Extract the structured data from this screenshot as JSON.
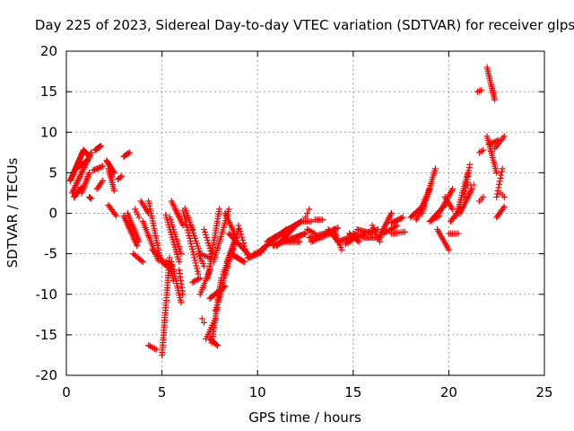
{
  "chart_data": {
    "type": "scatter",
    "title": "Day 225 of 2023, Sidereal Day-to-day VTEC variation (SDTVAR) for receiver glps",
    "xlabel": "GPS time / hours",
    "ylabel": "SDTVAR / TECUs",
    "xlim": [
      0,
      25
    ],
    "ylim": [
      -20,
      20
    ],
    "xticks": [
      0,
      5,
      10,
      15,
      20,
      25
    ],
    "yticks": [
      -20,
      -15,
      -10,
      -5,
      0,
      5,
      10,
      15,
      20
    ],
    "x_tick_labels": [
      "0",
      "5",
      "10",
      "15",
      "20",
      "25"
    ],
    "y_tick_labels": [
      "-20",
      "-15",
      "-10",
      "-5",
      "0",
      "5",
      "10",
      "15",
      "20"
    ],
    "grid": true,
    "marker": "+",
    "color": "#ff0000",
    "segments": [
      {
        "x0": 0.2,
        "y0": 4.0,
        "x1": 0.9,
        "y1": 7.8,
        "n": 30
      },
      {
        "x0": 0.9,
        "y0": 7.8,
        "x1": 1.2,
        "y1": 7.0,
        "n": 10
      },
      {
        "x0": 0.3,
        "y0": 2.5,
        "x1": 1.3,
        "y1": 7.5,
        "n": 28
      },
      {
        "x0": 0.4,
        "y0": 2.0,
        "x1": 0.8,
        "y1": 3.2,
        "n": 10
      },
      {
        "x0": 0.5,
        "y0": 5.5,
        "x1": 1.1,
        "y1": 6.5,
        "n": 12
      },
      {
        "x0": 0.8,
        "y0": 2.5,
        "x1": 1.2,
        "y1": 5.0,
        "n": 12
      },
      {
        "x0": 1.2,
        "y0": 2.0,
        "x1": 1.3,
        "y1": 1.8,
        "n": 3
      },
      {
        "x0": 1.5,
        "y0": 7.8,
        "x1": 1.8,
        "y1": 8.3,
        "n": 8
      },
      {
        "x0": 1.4,
        "y0": 5.3,
        "x1": 1.9,
        "y1": 5.8,
        "n": 8
      },
      {
        "x0": 1.6,
        "y0": 3.0,
        "x1": 1.9,
        "y1": 4.0,
        "n": 6
      },
      {
        "x0": 2.1,
        "y0": 6.5,
        "x1": 2.5,
        "y1": 5.0,
        "n": 12
      },
      {
        "x0": 2.2,
        "y0": 5.5,
        "x1": 2.5,
        "y1": 2.8,
        "n": 12
      },
      {
        "x0": 2.3,
        "y0": 5.0,
        "x1": 2.4,
        "y1": 4.5,
        "n": 3
      },
      {
        "x0": 2.2,
        "y0": 1.0,
        "x1": 2.6,
        "y1": -0.3,
        "n": 8
      },
      {
        "x0": 2.7,
        "y0": 4.2,
        "x1": 2.9,
        "y1": 4.6,
        "n": 4
      },
      {
        "x0": 3.0,
        "y0": 7.0,
        "x1": 3.3,
        "y1": 7.5,
        "n": 6
      },
      {
        "x0": 3.0,
        "y0": -0.3,
        "x1": 3.7,
        "y1": -4.0,
        "n": 20
      },
      {
        "x0": 3.2,
        "y0": 0.0,
        "x1": 3.8,
        "y1": -3.5,
        "n": 16
      },
      {
        "x0": 3.5,
        "y0": -5.0,
        "x1": 4.0,
        "y1": -6.0,
        "n": 8
      },
      {
        "x0": 3.9,
        "y0": 1.5,
        "x1": 4.3,
        "y1": 0.0,
        "n": 8
      },
      {
        "x0": 3.6,
        "y0": 0.5,
        "x1": 3.8,
        "y1": -0.5,
        "n": 4
      },
      {
        "x0": 4.0,
        "y0": -1.0,
        "x1": 4.8,
        "y1": -5.8,
        "n": 20
      },
      {
        "x0": 4.3,
        "y0": 1.5,
        "x1": 4.9,
        "y1": -5.5,
        "n": 24
      },
      {
        "x0": 4.5,
        "y0": -4.5,
        "x1": 5.0,
        "y1": -5.8,
        "n": 10
      },
      {
        "x0": 4.3,
        "y0": -16.3,
        "x1": 4.7,
        "y1": -16.8,
        "n": 6
      },
      {
        "x0": 5.0,
        "y0": -6.0,
        "x1": 5.5,
        "y1": -7.0,
        "n": 10
      },
      {
        "x0": 5.2,
        "y0": -6.0,
        "x1": 5.5,
        "y1": -6.5,
        "n": 6
      },
      {
        "x0": 5.0,
        "y0": -17.5,
        "x1": 5.4,
        "y1": -5.5,
        "n": 40
      },
      {
        "x0": 5.4,
        "y0": -6.3,
        "x1": 5.6,
        "y1": -8.3,
        "n": 8
      },
      {
        "x0": 5.2,
        "y0": -0.2,
        "x1": 5.9,
        "y1": -6.0,
        "n": 20
      },
      {
        "x0": 5.4,
        "y0": -0.5,
        "x1": 6.0,
        "y1": -5.0,
        "n": 16
      },
      {
        "x0": 5.5,
        "y0": -6.0,
        "x1": 6.0,
        "y1": -11.0,
        "n": 18
      },
      {
        "x0": 5.5,
        "y0": 1.5,
        "x1": 6.1,
        "y1": -1.5,
        "n": 14
      },
      {
        "x0": 5.9,
        "y0": -7.0,
        "x1": 6.1,
        "y1": -10.0,
        "n": 8
      },
      {
        "x0": 6.1,
        "y0": 0.3,
        "x1": 6.9,
        "y1": -7.5,
        "n": 24
      },
      {
        "x0": 6.2,
        "y0": 0.6,
        "x1": 6.6,
        "y1": -2.0,
        "n": 10
      },
      {
        "x0": 6.5,
        "y0": -1.5,
        "x1": 7.0,
        "y1": -5.0,
        "n": 12
      },
      {
        "x0": 6.6,
        "y0": -8.5,
        "x1": 7.0,
        "y1": -8.0,
        "n": 6
      },
      {
        "x0": 6.9,
        "y0": -5.0,
        "x1": 7.2,
        "y1": -6.5,
        "n": 6
      },
      {
        "x0": 7.0,
        "y0": -5.0,
        "x1": 7.5,
        "y1": -5.5,
        "n": 6
      },
      {
        "x0": 7.0,
        "y0": -10.0,
        "x1": 7.5,
        "y1": -7.0,
        "n": 12
      },
      {
        "x0": 7.1,
        "y0": -13.0,
        "x1": 7.2,
        "y1": -13.5,
        "n": 2
      },
      {
        "x0": 7.5,
        "y0": -15.5,
        "x1": 7.9,
        "y1": -16.3,
        "n": 8
      },
      {
        "x0": 7.3,
        "y0": -15.5,
        "x1": 7.8,
        "y1": -13.0,
        "n": 10
      },
      {
        "x0": 7.6,
        "y0": -16.0,
        "x1": 8.1,
        "y1": -8.0,
        "n": 30
      },
      {
        "x0": 7.8,
        "y0": -12.0,
        "x1": 8.2,
        "y1": -9.0,
        "n": 10
      },
      {
        "x0": 7.5,
        "y0": -10.5,
        "x1": 8.3,
        "y1": -9.0,
        "n": 14
      },
      {
        "x0": 7.2,
        "y0": -2.0,
        "x1": 7.6,
        "y1": -5.0,
        "n": 10
      },
      {
        "x0": 7.4,
        "y0": -8.0,
        "x1": 8.0,
        "y1": 0.5,
        "n": 30
      },
      {
        "x0": 7.7,
        "y0": -6.0,
        "x1": 8.5,
        "y1": 0.5,
        "n": 24
      },
      {
        "x0": 8.0,
        "y0": -10.0,
        "x1": 8.7,
        "y1": -4.5,
        "n": 20
      },
      {
        "x0": 8.2,
        "y0": -7.5,
        "x1": 8.9,
        "y1": -3.0,
        "n": 18
      },
      {
        "x0": 8.3,
        "y0": 0.0,
        "x1": 8.8,
        "y1": -2.5,
        "n": 12
      },
      {
        "x0": 8.4,
        "y0": -6.0,
        "x1": 9.0,
        "y1": -2.0,
        "n": 16
      },
      {
        "x0": 8.6,
        "y0": -5.0,
        "x1": 9.3,
        "y1": -6.0,
        "n": 14
      },
      {
        "x0": 8.5,
        "y0": -2.5,
        "x1": 9.5,
        "y1": -5.0,
        "n": 18
      },
      {
        "x0": 9.0,
        "y0": -1.5,
        "x1": 9.5,
        "y1": -5.5,
        "n": 12
      },
      {
        "x0": 9.5,
        "y0": -5.5,
        "x1": 10.2,
        "y1": -4.8,
        "n": 12
      },
      {
        "x0": 9.8,
        "y0": -5.0,
        "x1": 10.3,
        "y1": -4.5,
        "n": 6
      },
      {
        "x0": 10.2,
        "y0": -4.5,
        "x1": 11.5,
        "y1": -2.0,
        "n": 30
      },
      {
        "x0": 10.5,
        "y0": -3.5,
        "x1": 12.3,
        "y1": -1.0,
        "n": 36
      },
      {
        "x0": 10.8,
        "y0": -4.0,
        "x1": 12.5,
        "y1": -2.5,
        "n": 30
      },
      {
        "x0": 11.0,
        "y0": -4.0,
        "x1": 12.0,
        "y1": -1.5,
        "n": 20
      },
      {
        "x0": 11.2,
        "y0": -3.5,
        "x1": 12.2,
        "y1": -3.5,
        "n": 14
      },
      {
        "x0": 12.3,
        "y0": -1.0,
        "x1": 12.8,
        "y1": -1.0,
        "n": 6
      },
      {
        "x0": 12.5,
        "y0": -0.5,
        "x1": 12.7,
        "y1": 0.5,
        "n": 3
      },
      {
        "x0": 12.6,
        "y0": -2.0,
        "x1": 13.0,
        "y1": -2.5,
        "n": 6
      },
      {
        "x0": 13.0,
        "y0": -0.8,
        "x1": 13.4,
        "y1": -0.8,
        "n": 6
      },
      {
        "x0": 12.7,
        "y0": -3.0,
        "x1": 13.5,
        "y1": -2.5,
        "n": 12
      },
      {
        "x0": 12.8,
        "y0": -3.5,
        "x1": 13.8,
        "y1": -2.5,
        "n": 14
      },
      {
        "x0": 13.5,
        "y0": -2.5,
        "x1": 14.2,
        "y1": -1.8,
        "n": 10
      },
      {
        "x0": 13.7,
        "y0": -2.0,
        "x1": 14.2,
        "y1": -3.5,
        "n": 10
      },
      {
        "x0": 14.0,
        "y0": -2.0,
        "x1": 14.4,
        "y1": -4.5,
        "n": 10
      },
      {
        "x0": 14.2,
        "y0": -3.5,
        "x1": 14.8,
        "y1": -3.0,
        "n": 10
      },
      {
        "x0": 14.6,
        "y0": -3.8,
        "x1": 15.0,
        "y1": -3.2,
        "n": 6
      },
      {
        "x0": 14.8,
        "y0": -2.5,
        "x1": 15.3,
        "y1": -3.5,
        "n": 10
      },
      {
        "x0": 15.0,
        "y0": -2.5,
        "x1": 15.6,
        "y1": -3.0,
        "n": 10
      },
      {
        "x0": 15.2,
        "y0": -2.0,
        "x1": 16.0,
        "y1": -2.5,
        "n": 12
      },
      {
        "x0": 15.5,
        "y0": -2.5,
        "x1": 16.3,
        "y1": -2.0,
        "n": 12
      },
      {
        "x0": 15.7,
        "y0": -3.0,
        "x1": 16.4,
        "y1": -3.0,
        "n": 10
      },
      {
        "x0": 16.0,
        "y0": -1.5,
        "x1": 16.4,
        "y1": -3.5,
        "n": 8
      },
      {
        "x0": 16.4,
        "y0": -2.8,
        "x1": 17.0,
        "y1": 0.0,
        "n": 16
      },
      {
        "x0": 16.6,
        "y0": -2.5,
        "x1": 17.3,
        "y1": -1.5,
        "n": 10
      },
      {
        "x0": 17.0,
        "y0": -1.2,
        "x1": 17.6,
        "y1": -0.5,
        "n": 10
      },
      {
        "x0": 17.0,
        "y0": -2.5,
        "x1": 17.7,
        "y1": -2.3,
        "n": 8
      },
      {
        "x0": 18.0,
        "y0": -0.5,
        "x1": 18.7,
        "y1": 1.0,
        "n": 12
      },
      {
        "x0": 18.3,
        "y0": -0.8,
        "x1": 19.0,
        "y1": 3.0,
        "n": 18
      },
      {
        "x0": 18.6,
        "y0": 0.0,
        "x1": 19.3,
        "y1": 5.5,
        "n": 22
      },
      {
        "x0": 19.0,
        "y0": -1.0,
        "x1": 19.5,
        "y1": -0.3,
        "n": 8
      },
      {
        "x0": 19.2,
        "y0": -0.5,
        "x1": 19.8,
        "y1": 1.0,
        "n": 10
      },
      {
        "x0": 19.4,
        "y0": -2.0,
        "x1": 20.0,
        "y1": -4.5,
        "n": 12
      },
      {
        "x0": 19.5,
        "y0": 0.0,
        "x1": 20.2,
        "y1": 3.0,
        "n": 14
      },
      {
        "x0": 19.8,
        "y0": 2.0,
        "x1": 20.2,
        "y1": 0.5,
        "n": 8
      },
      {
        "x0": 20.1,
        "y0": -1.0,
        "x1": 20.6,
        "y1": 0.5,
        "n": 10
      },
      {
        "x0": 20.0,
        "y0": -2.5,
        "x1": 20.5,
        "y1": -2.5,
        "n": 6
      },
      {
        "x0": 20.4,
        "y0": -0.3,
        "x1": 21.0,
        "y1": 5.0,
        "n": 20
      },
      {
        "x0": 20.6,
        "y0": 0.0,
        "x1": 21.2,
        "y1": 3.0,
        "n": 14
      },
      {
        "x0": 20.8,
        "y0": 2.0,
        "x1": 21.1,
        "y1": 6.0,
        "n": 12
      },
      {
        "x0": 21.0,
        "y0": 3.5,
        "x1": 21.3,
        "y1": 3.5,
        "n": 3
      },
      {
        "x0": 21.5,
        "y0": 15.0,
        "x1": 21.7,
        "y1": 15.2,
        "n": 3
      },
      {
        "x0": 21.6,
        "y0": 7.5,
        "x1": 21.8,
        "y1": 7.8,
        "n": 3
      },
      {
        "x0": 21.6,
        "y0": 1.5,
        "x1": 21.8,
        "y1": 2.0,
        "n": 3
      },
      {
        "x0": 22.0,
        "y0": 18.0,
        "x1": 22.4,
        "y1": 14.0,
        "n": 18
      },
      {
        "x0": 22.0,
        "y0": 9.5,
        "x1": 22.5,
        "y1": 5.0,
        "n": 18
      },
      {
        "x0": 22.1,
        "y0": 8.5,
        "x1": 22.6,
        "y1": 9.0,
        "n": 8
      },
      {
        "x0": 22.4,
        "y0": 8.0,
        "x1": 22.9,
        "y1": 9.5,
        "n": 8
      },
      {
        "x0": 22.5,
        "y0": 2.0,
        "x1": 22.8,
        "y1": 5.5,
        "n": 10
      },
      {
        "x0": 22.5,
        "y0": -0.5,
        "x1": 22.9,
        "y1": 0.8,
        "n": 8
      },
      {
        "x0": 22.7,
        "y0": 2.5,
        "x1": 22.9,
        "y1": 2.0,
        "n": 3
      }
    ]
  }
}
